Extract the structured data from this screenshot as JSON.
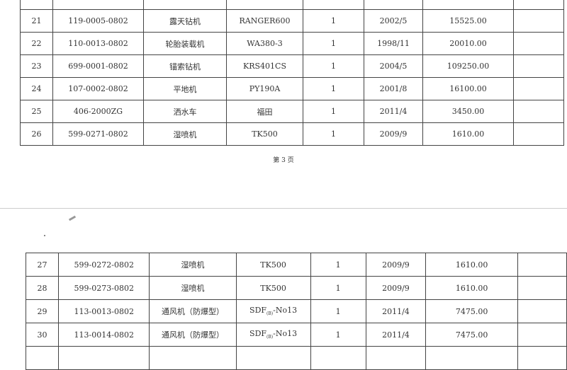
{
  "page1": {
    "rows": [
      {
        "no": "",
        "code": "",
        "name": "",
        "model": "",
        "qty": "",
        "date": "",
        "value": ""
      },
      {
        "no": "21",
        "code": "119-0005-0802",
        "name": "露天钻机",
        "model": "RANGER600",
        "qty": "1",
        "date": "2002/5",
        "value": "15525.00"
      },
      {
        "no": "22",
        "code": "110-0013-0802",
        "name": "轮胎装载机",
        "model": "WA380-3",
        "qty": "1",
        "date": "1998/11",
        "value": "20010.00"
      },
      {
        "no": "23",
        "code": "699-0001-0802",
        "name": "锚索钻机",
        "model": "KRS401CS",
        "qty": "1",
        "date": "2004/5",
        "value": "109250.00"
      },
      {
        "no": "24",
        "code": "107-0002-0802",
        "name": "平地机",
        "model": "PY190A",
        "qty": "1",
        "date": "2001/8",
        "value": "16100.00"
      },
      {
        "no": "25",
        "code": "406-2000ZG",
        "name": "洒水车",
        "model": "福田",
        "qty": "1",
        "date": "2011/4",
        "value": "3450.00"
      },
      {
        "no": "26",
        "code": "599-0271-0802",
        "name": "湿喷机",
        "model": "TK500",
        "qty": "1",
        "date": "2009/9",
        "value": "1610.00"
      }
    ],
    "page_label": "第 3 页"
  },
  "page2": {
    "rows": [
      {
        "no": "27",
        "code": "599-0272-0802",
        "name": "湿喷机",
        "model": "TK500",
        "qty": "1",
        "date": "2009/9",
        "value": "1610.00"
      },
      {
        "no": "28",
        "code": "599-0273-0802",
        "name": "湿喷机",
        "model": "TK500",
        "qty": "1",
        "date": "2009/9",
        "value": "1610.00"
      },
      {
        "no": "29",
        "code": "113-0013-0802",
        "name": "通风机（防爆型）",
        "model": "SDF",
        "model_sub": "(B)",
        "model_suffix": "-No13",
        "qty": "1",
        "date": "2011/4",
        "value": "7475.00"
      },
      {
        "no": "30",
        "code": "113-0014-0802",
        "name": "通风机（防爆型）",
        "model": "SDF",
        "model_sub": "(B)",
        "model_suffix": "-No13",
        "qty": "1",
        "date": "2011/4",
        "value": "7475.00"
      },
      {
        "no": "",
        "code": "",
        "name": "",
        "model": "",
        "qty": "",
        "date": "",
        "value": ""
      }
    ]
  }
}
